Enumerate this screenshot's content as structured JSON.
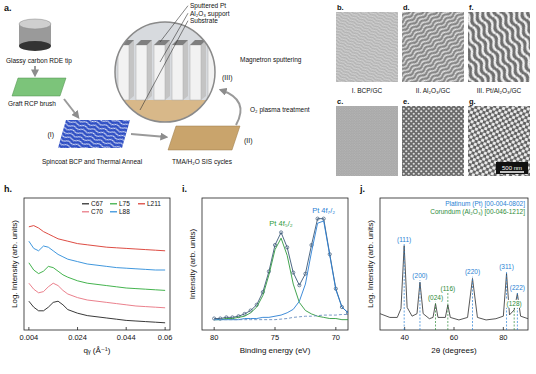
{
  "schematic": {
    "label": "a.",
    "callouts": [
      "Sputtered Pt",
      "Al₂O₃ support",
      "Substrate"
    ],
    "steps": [
      {
        "label": "Glassy carbon RDE tip"
      },
      {
        "label": "Graft RCP brush"
      },
      {
        "number": "(I)",
        "label": "Spincoat BCP and Thermal Anneal"
      },
      {
        "number": "(II)",
        "label": "TMA/H₂O SIS cycles"
      },
      {
        "label": "O₂ plasma treatment"
      },
      {
        "number": "(III)",
        "label": "Magnetron sputtering"
      }
    ]
  },
  "micrographs": {
    "columns": [
      {
        "caption": "I. BCP/GC",
        "top": "b.",
        "bottom": "c."
      },
      {
        "caption": "II. Al₂O₃/GC",
        "top": "d.",
        "bottom": "e."
      },
      {
        "caption": "III. Pt/Al₂O₃/GC",
        "top": "f.",
        "bottom": "g."
      }
    ],
    "scale_bar": "500 nm"
  },
  "chart_data": [
    {
      "type": "line",
      "title": "h.",
      "x_label": "qᵧ (Å⁻¹)",
      "y_label": "Log. Intensity (arb. units)",
      "x": [
        0.004,
        0.006,
        0.008,
        0.01,
        0.012,
        0.014,
        0.016,
        0.018,
        0.02,
        0.024,
        0.028,
        0.032,
        0.036,
        0.04,
        0.044,
        0.048,
        0.052,
        0.056,
        0.06
      ],
      "xlim": [
        0.002,
        0.062
      ],
      "xticks": [
        0.004,
        0.024,
        0.044,
        0.06
      ],
      "ylim": [
        0,
        11
      ],
      "tick_labels": "x",
      "grid": false,
      "legend": "upper right",
      "series": [
        {
          "name": "C67",
          "color": "#222222",
          "values": [
            2.4,
            1.9,
            1.6,
            1.6,
            1.9,
            2.3,
            2.4,
            2.1,
            1.7,
            1.4,
            1.2,
            1.1,
            1.0,
            0.9,
            0.8,
            0.75,
            0.7,
            0.65,
            0.6
          ]
        },
        {
          "name": "C70",
          "color": "#e8727f",
          "values": [
            3.9,
            3.4,
            3.1,
            3.2,
            3.6,
            3.9,
            3.7,
            3.3,
            3.0,
            2.7,
            2.5,
            2.4,
            2.3,
            2.2,
            2.1,
            2.0,
            1.95,
            1.9,
            1.85
          ]
        },
        {
          "name": "L75",
          "color": "#2faa3a",
          "values": [
            5.6,
            5.0,
            4.7,
            4.9,
            5.3,
            5.2,
            4.9,
            4.6,
            4.4,
            4.1,
            3.9,
            3.8,
            3.7,
            3.6,
            3.5,
            3.45,
            3.4,
            3.35,
            3.3
          ]
        },
        {
          "name": "L88",
          "color": "#2a8bd9",
          "values": [
            7.4,
            6.8,
            6.6,
            7.0,
            6.9,
            6.6,
            6.3,
            6.1,
            5.9,
            5.7,
            5.5,
            5.4,
            5.3,
            5.2,
            5.15,
            5.1,
            5.05,
            5.0,
            5.0
          ]
        },
        {
          "name": "L211",
          "color": "#d9382e",
          "values": [
            8.6,
            8.7,
            8.5,
            8.2,
            8.0,
            7.8,
            7.6,
            7.5,
            7.4,
            7.2,
            7.1,
            7.0,
            6.9,
            6.85,
            6.8,
            6.75,
            6.7,
            6.65,
            6.6
          ]
        }
      ]
    },
    {
      "type": "line",
      "title": "i.",
      "x_label": "Binding energy (eV)",
      "y_label": "Intensity (arb. units)",
      "x": [
        80,
        79.5,
        79,
        78.5,
        78,
        77.5,
        77,
        76.5,
        76,
        75.5,
        75,
        74.5,
        74,
        73.5,
        73,
        72.5,
        72,
        71.5,
        71,
        70.5,
        70,
        69.5,
        69
      ],
      "xlim": [
        81,
        69
      ],
      "xticks": [
        80,
        75,
        70
      ],
      "ylim": [
        0,
        11.5
      ],
      "tick_labels": "x",
      "grid": false,
      "series": [
        {
          "color": "#3b5877",
          "marker": "circle",
          "line_style": "solid",
          "values": [
            1.0,
            1.0,
            1.1,
            1.1,
            1.2,
            1.4,
            1.7,
            2.2,
            3.3,
            5.1,
            7.4,
            8.5,
            7.2,
            5.0,
            3.9,
            4.9,
            7.4,
            9.7,
            9.7,
            6.6,
            3.6,
            2.0,
            1.5
          ]
        },
        {
          "name": "Pt 4f₅/₂",
          "color": "#2e9a3c",
          "line_style": "solid",
          "values": [
            0.9,
            0.9,
            1.0,
            1.0,
            1.1,
            1.2,
            1.5,
            2.0,
            3.0,
            4.8,
            7.0,
            8.0,
            6.5,
            4.0,
            2.4,
            1.7,
            1.4,
            1.2,
            1.1,
            1.0,
            1.0,
            0.9,
            0.9
          ]
        },
        {
          "name": "Pt 4f₇/₂",
          "color": "#2a7fd4",
          "line_style": "solid",
          "values": [
            0.9,
            0.9,
            0.9,
            0.9,
            0.9,
            1.0,
            1.0,
            1.0,
            1.1,
            1.1,
            1.2,
            1.3,
            1.5,
            1.8,
            2.5,
            4.0,
            6.8,
            9.3,
            9.5,
            6.5,
            3.5,
            2.0,
            1.5
          ]
        },
        {
          "color": "#6a8fc0",
          "line_style": "dashed",
          "values": [
            0.9,
            0.9,
            0.9,
            0.9,
            0.9,
            0.9,
            0.9,
            0.9,
            0.9,
            0.9,
            0.9,
            0.95,
            1.0,
            1.1,
            1.15,
            1.2,
            1.2,
            1.25,
            1.3,
            1.3,
            1.3,
            1.35,
            1.35
          ]
        }
      ]
    },
    {
      "type": "line",
      "title": "j.",
      "x_label": "2θ (degrees)",
      "y_label": "Log. Intensity (arb. units)",
      "x": [
        30,
        34,
        37,
        38.5,
        39.8,
        41,
        43,
        45,
        46.2,
        47.5,
        50,
        51.5,
        52.5,
        53.5,
        56.5,
        57.5,
        58.5,
        62,
        65.5,
        67.5,
        69.5,
        73,
        77,
        80,
        81.3,
        82.5,
        84.4,
        85.7,
        87,
        90
      ],
      "xlim": [
        30,
        90
      ],
      "xticks": [
        40,
        60,
        80
      ],
      "ylim": [
        1.5,
        12
      ],
      "tick_labels": "x",
      "grid": false,
      "legend": "upper right",
      "series": [
        {
          "color": "#444444",
          "line_style": "solid",
          "values": [
            2.8,
            2.5,
            2.5,
            3.2,
            8.2,
            3.3,
            2.6,
            2.8,
            5.3,
            2.8,
            2.4,
            2.5,
            3.6,
            2.5,
            2.5,
            3.5,
            2.5,
            2.3,
            2.5,
            5.6,
            2.5,
            2.3,
            2.4,
            2.6,
            6.0,
            2.7,
            3.1,
            4.4,
            2.6,
            2.4
          ]
        }
      ],
      "references": [
        {
          "name": "Platinum (Pt) [00-004-0802]",
          "color": "#2a7fd4",
          "x": [
            39.8,
            46.2,
            67.5,
            81.3,
            85.7
          ],
          "labels": [
            "(111)",
            "(200)",
            "(220)",
            "(311)",
            "(222)"
          ]
        },
        {
          "name": "Corundum (Al₂O₃) [00-046-1212]",
          "color": "#2e8b3a",
          "x": [
            52.5,
            57.5,
            84.4
          ],
          "labels": [
            "(024)",
            "(116)",
            "(128)"
          ]
        }
      ]
    }
  ]
}
